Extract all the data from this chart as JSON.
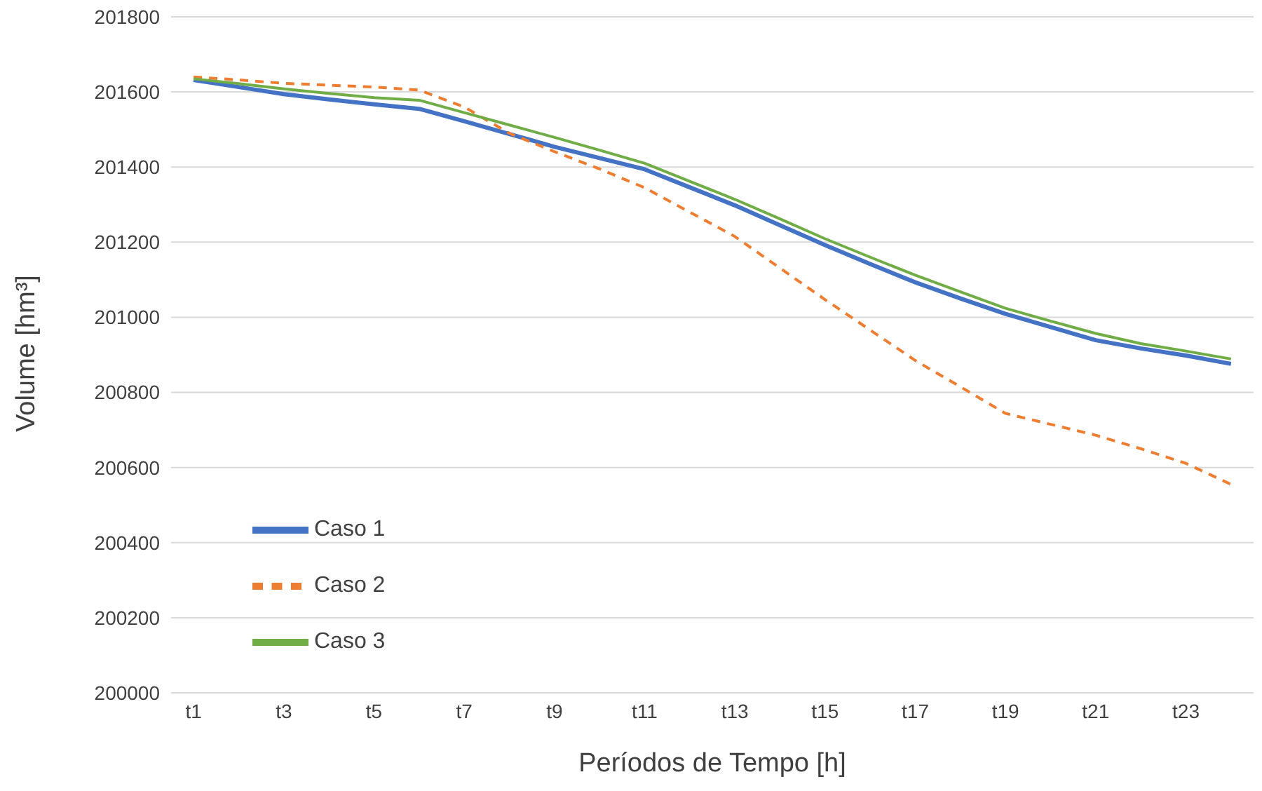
{
  "chart_data": {
    "type": "line",
    "xlabel": "Períodos de Tempo [h]",
    "ylabel": "Volume [hm³]",
    "categories": [
      "t1",
      null,
      "t3",
      null,
      "t5",
      null,
      "t7",
      null,
      "t9",
      null,
      "t11",
      null,
      "t13",
      null,
      "t15",
      null,
      "t17",
      null,
      "t19",
      null,
      "t21",
      null,
      "t23",
      null
    ],
    "ylim": [
      200000,
      201800
    ],
    "yticks": [
      200000,
      200200,
      200400,
      200600,
      200800,
      201000,
      201200,
      201400,
      201600,
      201800
    ],
    "grid": "y",
    "legend": "bottom left",
    "marker": "none",
    "series": [
      {
        "name": "Caso 1",
        "color": "#4472c4",
        "line_style": "solid",
        "values": [
          201632,
          201613,
          201594,
          201580,
          201567,
          201555,
          201522,
          201488,
          201454,
          201424,
          201394,
          201346,
          201298,
          201245,
          201192,
          201142,
          201093,
          201050,
          201009,
          200974,
          200939,
          200917,
          200898,
          200876
        ]
      },
      {
        "name": "Caso 2",
        "color": "#ed7d31",
        "line_style": "dashed",
        "values": [
          201640,
          201632,
          201623,
          201618,
          201613,
          201605,
          201560,
          201490,
          201441,
          201395,
          201345,
          201280,
          201215,
          201131,
          201047,
          200966,
          200885,
          200815,
          200744,
          200715,
          200686,
          200650,
          200611,
          200555
        ]
      },
      {
        "name": "Caso 3",
        "color": "#70ad47",
        "line_style": "solid",
        "values": [
          201635,
          201622,
          201608,
          201596,
          201585,
          201578,
          201545,
          201512,
          201479,
          201445,
          201410,
          201362,
          201314,
          201262,
          201209,
          201160,
          201112,
          201068,
          201024,
          200990,
          200957,
          200930,
          200910,
          200889
        ]
      }
    ]
  }
}
